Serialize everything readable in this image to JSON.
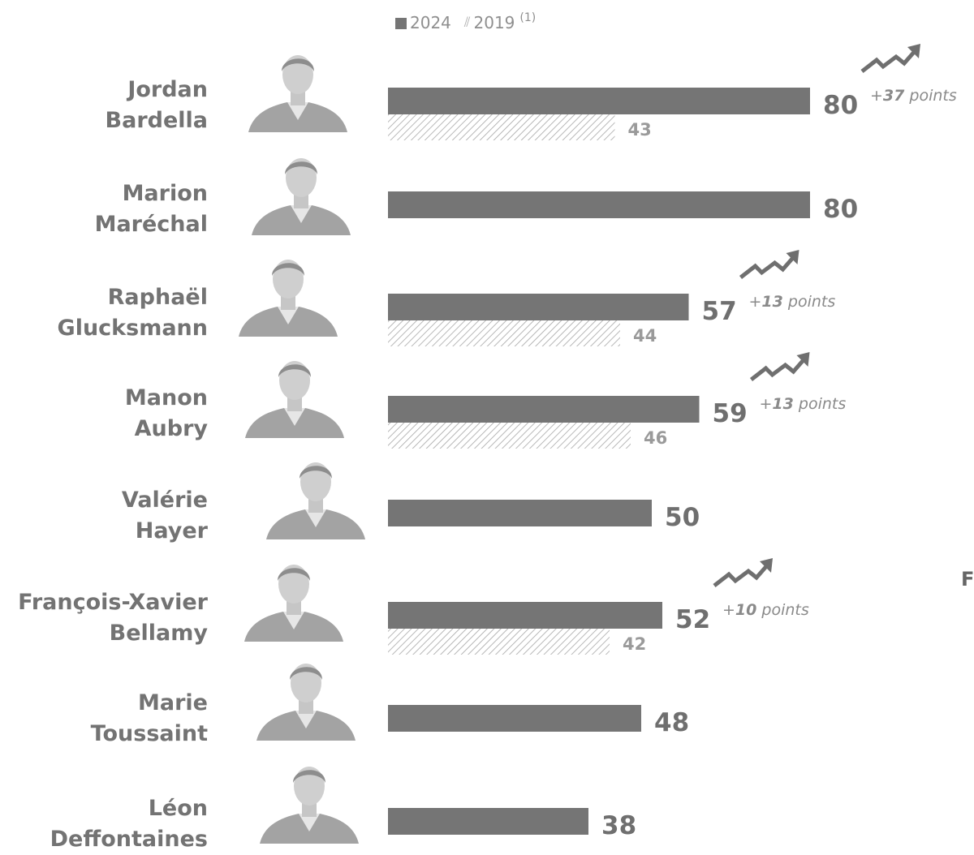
{
  "legend": {
    "series_2024": "2024",
    "series_2019": "2019",
    "note_marker": "(1)"
  },
  "right_edge_fragment": "Fr",
  "colors": {
    "bar_2024": "#757575",
    "label_2024": "#6f6f6f",
    "label_2019": "#9a9a9a",
    "hatch": "#a6a6a6",
    "arrow": "#6f6f6f",
    "change_text": "#8a8a8a",
    "name_text": "#737373"
  },
  "chart_data": {
    "type": "bar",
    "orientation": "horizontal",
    "categories": [
      "Jordan Bardella",
      "Marion Maréchal",
      "Raphaël Glucksmann",
      "Manon Aubry",
      "Valérie Hayer",
      "François-Xavier Bellamy",
      "Marie Toussaint",
      "Léon Deffontaines"
    ],
    "series": [
      {
        "name": "2024",
        "values": [
          80,
          80,
          57,
          59,
          50,
          52,
          48,
          38
        ]
      },
      {
        "name": "2019",
        "values": [
          43,
          null,
          44,
          46,
          null,
          42,
          null,
          null
        ]
      }
    ],
    "changes": [
      {
        "index": 0,
        "sign": "+",
        "value": "37",
        "unit": "points"
      },
      {
        "index": 2,
        "sign": "+",
        "value": "13",
        "unit": "points"
      },
      {
        "index": 3,
        "sign": "+",
        "value": "13",
        "unit": "points"
      },
      {
        "index": 5,
        "sign": "+",
        "value": "10",
        "unit": "points"
      }
    ],
    "legend_position": "top",
    "grid": false,
    "xlim": [
      0,
      100
    ]
  },
  "candidates": [
    {
      "first": "Jordan",
      "last": "Bardella",
      "photo_icon": "portrait-photo-icon"
    },
    {
      "first": "Marion",
      "last": "Maréchal",
      "photo_icon": "portrait-photo-icon"
    },
    {
      "first": "Raphaël",
      "last": "Glucksmann",
      "photo_icon": "portrait-photo-icon"
    },
    {
      "first": "Manon",
      "last": "Aubry",
      "photo_icon": "portrait-photo-icon"
    },
    {
      "first": "Valérie",
      "last": "Hayer",
      "photo_icon": "portrait-photo-icon"
    },
    {
      "first": "François-Xavier",
      "last": "Bellamy",
      "photo_icon": "portrait-photo-icon"
    },
    {
      "first": "Marie",
      "last": "Toussaint",
      "photo_icon": "portrait-photo-icon"
    },
    {
      "first": "Léon",
      "last": "Deffontaines",
      "photo_icon": "portrait-photo-icon"
    }
  ]
}
